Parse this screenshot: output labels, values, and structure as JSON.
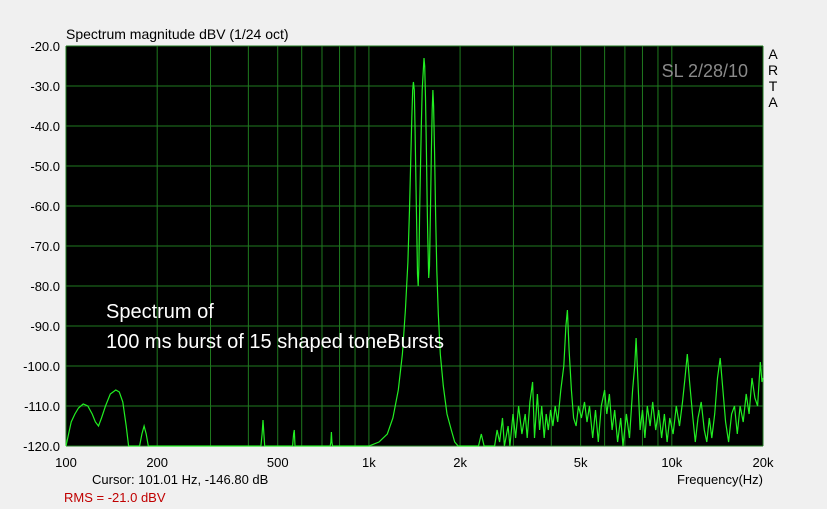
{
  "chart_data": {
    "type": "line",
    "title": "Spectrum magnitude dBV (1/24 oct)",
    "xlabel": "Frequency(Hz)",
    "x_scale": "log",
    "xlim": [
      100,
      20000
    ],
    "ylim": [
      -120,
      -20
    ],
    "grid": true,
    "x_ticks": [
      {
        "value": 100,
        "label": "100"
      },
      {
        "value": 200,
        "label": "200"
      },
      {
        "value": 500,
        "label": "500"
      },
      {
        "value": 1000,
        "label": "1k"
      },
      {
        "value": 2000,
        "label": "2k"
      },
      {
        "value": 5000,
        "label": "5k"
      },
      {
        "value": 10000,
        "label": "10k"
      },
      {
        "value": 20000,
        "label": "20k"
      }
    ],
    "y_ticks": [
      {
        "value": -20,
        "label": "-20.0"
      },
      {
        "value": -30,
        "label": "-30.0"
      },
      {
        "value": -40,
        "label": "-40.0"
      },
      {
        "value": -50,
        "label": "-50.0"
      },
      {
        "value": -60,
        "label": "-60.0"
      },
      {
        "value": -70,
        "label": "-70.0"
      },
      {
        "value": -80,
        "label": "-80.0"
      },
      {
        "value": -90,
        "label": "-90.0"
      },
      {
        "value": -100,
        "label": "-100.0"
      },
      {
        "value": -110,
        "label": "-110.0"
      },
      {
        "value": -120,
        "label": "-120.0"
      }
    ],
    "annotation_lines": [
      "Spectrum of",
      "100 ms burst of 15 shaped toneBursts"
    ],
    "stamp": "SL 2/28/10",
    "side_label": [
      "A",
      "R",
      "T",
      "A"
    ],
    "cursor_text": "Cursor:   101.01 Hz, -146.80 dB",
    "rms_text": "RMS =  -21.0 dBV",
    "colors": {
      "background": "#000000",
      "grid": "#1f7a1f",
      "trace": "#22ee22"
    },
    "series": [
      {
        "points": [
          [
            100,
            -120
          ],
          [
            102,
            -117
          ],
          [
            104,
            -114
          ],
          [
            107,
            -112
          ],
          [
            110,
            -110.5
          ],
          [
            114,
            -109.5
          ],
          [
            118,
            -110
          ],
          [
            122,
            -112
          ],
          [
            125,
            -114
          ],
          [
            128,
            -115
          ],
          [
            131,
            -113
          ],
          [
            135,
            -110
          ],
          [
            140,
            -107
          ],
          [
            146,
            -106
          ],
          [
            150,
            -106.5
          ],
          [
            154,
            -109
          ],
          [
            158,
            -115
          ],
          [
            161,
            -120
          ],
          [
            175,
            -120
          ],
          [
            178,
            -117
          ],
          [
            181,
            -115
          ],
          [
            184,
            -117
          ],
          [
            187,
            -120
          ],
          [
            440,
            -120
          ],
          [
            444,
            -117
          ],
          [
            447,
            -113.5
          ],
          [
            450,
            -117
          ],
          [
            453,
            -120
          ],
          [
            560,
            -120
          ],
          [
            564,
            -117
          ],
          [
            567,
            -116
          ],
          [
            570,
            -120
          ],
          [
            745,
            -120
          ],
          [
            749,
            -119
          ],
          [
            752,
            -116.5
          ],
          [
            755,
            -119
          ],
          [
            758,
            -120
          ],
          [
            1000,
            -120
          ],
          [
            1080,
            -119
          ],
          [
            1150,
            -117
          ],
          [
            1200,
            -113
          ],
          [
            1250,
            -106
          ],
          [
            1290,
            -97
          ],
          [
            1320,
            -86
          ],
          [
            1345,
            -74
          ],
          [
            1362,
            -60
          ],
          [
            1375,
            -48
          ],
          [
            1385,
            -38
          ],
          [
            1395,
            -31
          ],
          [
            1402,
            -29
          ],
          [
            1412,
            -31
          ],
          [
            1420,
            -40
          ],
          [
            1430,
            -55
          ],
          [
            1438,
            -65
          ],
          [
            1447,
            -77
          ],
          [
            1455,
            -80
          ],
          [
            1462,
            -75
          ],
          [
            1470,
            -62
          ],
          [
            1480,
            -50
          ],
          [
            1490,
            -39
          ],
          [
            1500,
            -31
          ],
          [
            1510,
            -27
          ],
          [
            1520,
            -23
          ],
          [
            1528,
            -25
          ],
          [
            1538,
            -33
          ],
          [
            1548,
            -46
          ],
          [
            1558,
            -60
          ],
          [
            1565,
            -68
          ],
          [
            1575,
            -78
          ],
          [
            1585,
            -75
          ],
          [
            1596,
            -62
          ],
          [
            1608,
            -46
          ],
          [
            1618,
            -36
          ],
          [
            1626,
            -31
          ],
          [
            1635,
            -35
          ],
          [
            1648,
            -47
          ],
          [
            1660,
            -62
          ],
          [
            1675,
            -76
          ],
          [
            1695,
            -87
          ],
          [
            1720,
            -97
          ],
          [
            1760,
            -105
          ],
          [
            1810,
            -112
          ],
          [
            1870,
            -116
          ],
          [
            1920,
            -119
          ],
          [
            1970,
            -120
          ],
          [
            2300,
            -120
          ],
          [
            2350,
            -117
          ],
          [
            2400,
            -120
          ],
          [
            2600,
            -120
          ],
          [
            2650,
            -116
          ],
          [
            2700,
            -119
          ],
          [
            2760,
            -113
          ],
          [
            2800,
            -120
          ],
          [
            2880,
            -115
          ],
          [
            2920,
            -120
          ],
          [
            2990,
            -112
          ],
          [
            3050,
            -118
          ],
          [
            3120,
            -110
          ],
          [
            3200,
            -117
          ],
          [
            3280,
            -112
          ],
          [
            3330,
            -118
          ],
          [
            3400,
            -109
          ],
          [
            3470,
            -104
          ],
          [
            3520,
            -118
          ],
          [
            3600,
            -107
          ],
          [
            3660,
            -116
          ],
          [
            3720,
            -110
          ],
          [
            3790,
            -118
          ],
          [
            3850,
            -112
          ],
          [
            3910,
            -116
          ],
          [
            3980,
            -111
          ],
          [
            4050,
            -115
          ],
          [
            4120,
            -110
          ],
          [
            4200,
            -114
          ],
          [
            4300,
            -106
          ],
          [
            4400,
            -100
          ],
          [
            4470,
            -90
          ],
          [
            4520,
            -86
          ],
          [
            4580,
            -96
          ],
          [
            4660,
            -106
          ],
          [
            4740,
            -113
          ],
          [
            4830,
            -115
          ],
          [
            4920,
            -110
          ],
          [
            5030,
            -113
          ],
          [
            5150,
            -109
          ],
          [
            5250,
            -114
          ],
          [
            5350,
            -110
          ],
          [
            5480,
            -118
          ],
          [
            5600,
            -111
          ],
          [
            5720,
            -119
          ],
          [
            5850,
            -110
          ],
          [
            6000,
            -106
          ],
          [
            6100,
            -112
          ],
          [
            6220,
            -107
          ],
          [
            6350,
            -116
          ],
          [
            6480,
            -111
          ],
          [
            6620,
            -119
          ],
          [
            6780,
            -113
          ],
          [
            6900,
            -120
          ],
          [
            7080,
            -112
          ],
          [
            7250,
            -118
          ],
          [
            7420,
            -106
          ],
          [
            7540,
            -100
          ],
          [
            7620,
            -93
          ],
          [
            7720,
            -103
          ],
          [
            7860,
            -116
          ],
          [
            8000,
            -111
          ],
          [
            8150,
            -118
          ],
          [
            8300,
            -110
          ],
          [
            8480,
            -115
          ],
          [
            8650,
            -109
          ],
          [
            8850,
            -116
          ],
          [
            9050,
            -111
          ],
          [
            9250,
            -118
          ],
          [
            9450,
            -112
          ],
          [
            9650,
            -119
          ],
          [
            9850,
            -113
          ],
          [
            10100,
            -117
          ],
          [
            10350,
            -110
          ],
          [
            10600,
            -115
          ],
          [
            10850,
            -109
          ],
          [
            11050,
            -103
          ],
          [
            11250,
            -97
          ],
          [
            11450,
            -104
          ],
          [
            11700,
            -112
          ],
          [
            11950,
            -119
          ],
          [
            12200,
            -113
          ],
          [
            12500,
            -109
          ],
          [
            12800,
            -116
          ],
          [
            13050,
            -119
          ],
          [
            13300,
            -113
          ],
          [
            13550,
            -118
          ],
          [
            13850,
            -112
          ],
          [
            14150,
            -103
          ],
          [
            14450,
            -98
          ],
          [
            14750,
            -106
          ],
          [
            15050,
            -114
          ],
          [
            15400,
            -119
          ],
          [
            15750,
            -112
          ],
          [
            16100,
            -110
          ],
          [
            16450,
            -117
          ],
          [
            16800,
            -110
          ],
          [
            17200,
            -114
          ],
          [
            17600,
            -107
          ],
          [
            18000,
            -112
          ],
          [
            18400,
            -103
          ],
          [
            18800,
            -108
          ],
          [
            19200,
            -110
          ],
          [
            19600,
            -99
          ],
          [
            19850,
            -104
          ],
          [
            20000,
            -103
          ]
        ]
      }
    ]
  }
}
